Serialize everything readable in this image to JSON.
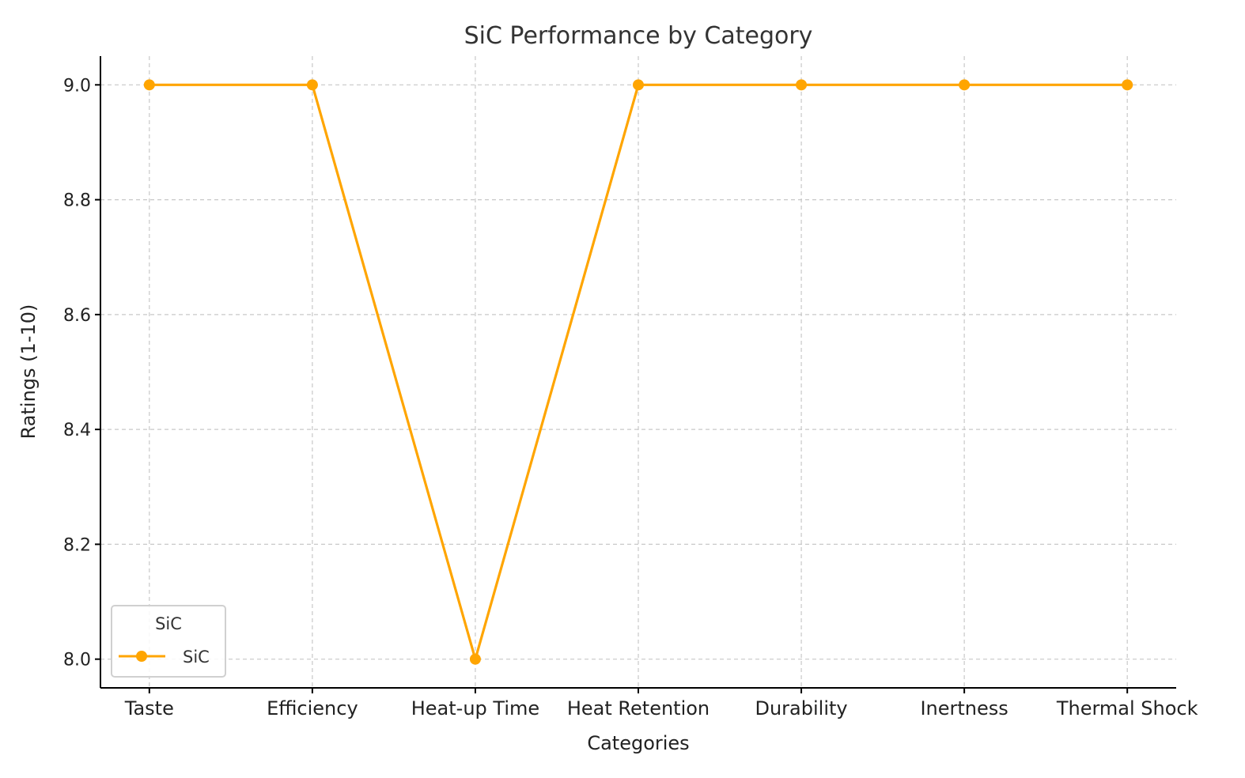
{
  "chart_data": {
    "type": "line",
    "title": "SiC Performance by Category",
    "xlabel": "Categories",
    "ylabel": "Ratings (1-10)",
    "categories": [
      "Taste",
      "Efficiency",
      "Heat-up Time",
      "Heat Retention",
      "Durability",
      "Inertness",
      "Thermal Shock"
    ],
    "series": [
      {
        "name": "SiC",
        "values": [
          9,
          9,
          8,
          9,
          9,
          9,
          9
        ],
        "color": "#FFA500",
        "marker": "circle"
      }
    ],
    "ylim": [
      7.95,
      9.05
    ],
    "yticks": [
      "8.0",
      "8.2",
      "8.4",
      "8.6",
      "8.8",
      "9.0"
    ],
    "grid": true,
    "legend": {
      "title": "SiC",
      "placement": "lower-left",
      "entries": [
        "SiC"
      ]
    }
  }
}
